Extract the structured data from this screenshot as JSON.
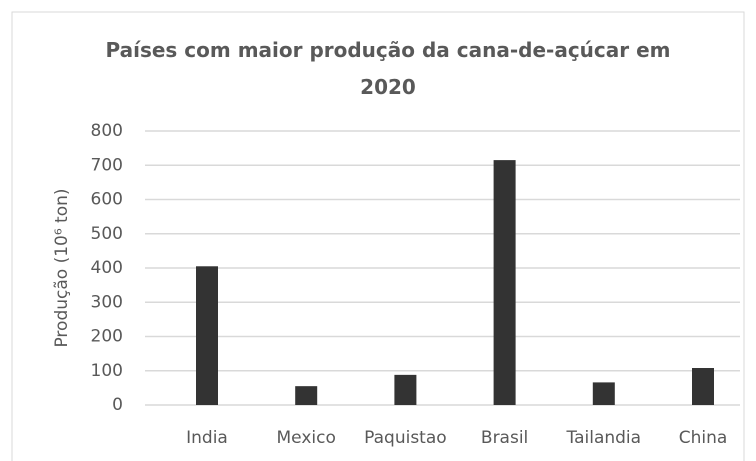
{
  "chart_data": {
    "type": "bar",
    "title": "Países com maior produção da cana-de-açúcar em 2020",
    "y_label": "Produção (10⁶ ton)",
    "categories": [
      "India",
      "Mexico",
      "Paquistao",
      "Brasil",
      "Tailandia",
      "China"
    ],
    "values": [
      405,
      55,
      88,
      715,
      66,
      108
    ],
    "color": "#333333",
    "ylim": [
      0,
      800
    ],
    "yticks": [
      0,
      100,
      200,
      300,
      400,
      500,
      600,
      700,
      800
    ],
    "grid": true
  }
}
